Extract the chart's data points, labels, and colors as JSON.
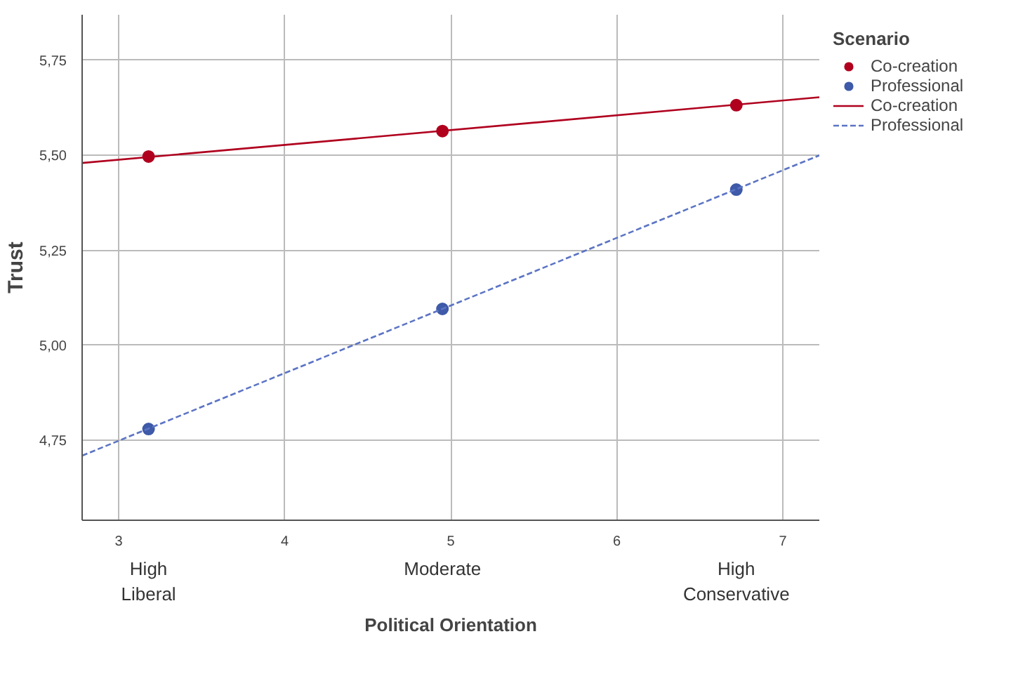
{
  "chart_data": {
    "type": "scatter",
    "xlabel": "Political Orientation",
    "ylabel": "Trust",
    "legend_title": "Scenario",
    "xlim": [
      2.78,
      7.22
    ],
    "ylim": [
      4.54,
      5.87
    ],
    "xticks": [
      3,
      4,
      5,
      6,
      7
    ],
    "yticks": [
      {
        "value": 4.75,
        "label": "4,75"
      },
      {
        "value": 5.0,
        "label": "5,00"
      },
      {
        "value": 5.25,
        "label": "5,25"
      },
      {
        "value": 5.5,
        "label": "5,50"
      },
      {
        "value": 5.75,
        "label": "5,75"
      }
    ],
    "grid": true,
    "legend": "right",
    "annotations": [
      "High\nLiberal",
      "Moderate",
      "High\nConservative"
    ],
    "series": [
      {
        "name": "Co-creation",
        "color": "#b0001e",
        "marker": "circle",
        "x": [
          3.18,
          4.95,
          6.72
        ],
        "values": [
          5.497,
          5.564,
          5.632
        ]
      },
      {
        "name": "Professional",
        "color": "#3e5aa8",
        "marker": "circle",
        "x": [
          3.18,
          4.95,
          6.72
        ],
        "values": [
          4.78,
          5.096,
          5.41
        ]
      },
      {
        "name": "Co-creation",
        "type": "line",
        "color": "#b0001e",
        "line_style": "solid",
        "marker": "none",
        "x": [
          2.78,
          7.22
        ],
        "values": [
          5.48,
          5.653
        ]
      },
      {
        "name": "Professional",
        "type": "line",
        "color": "#5b74c4",
        "line_style": "dashed",
        "marker": "none",
        "x": [
          2.78,
          7.22
        ],
        "values": [
          4.71,
          5.5
        ]
      }
    ]
  }
}
